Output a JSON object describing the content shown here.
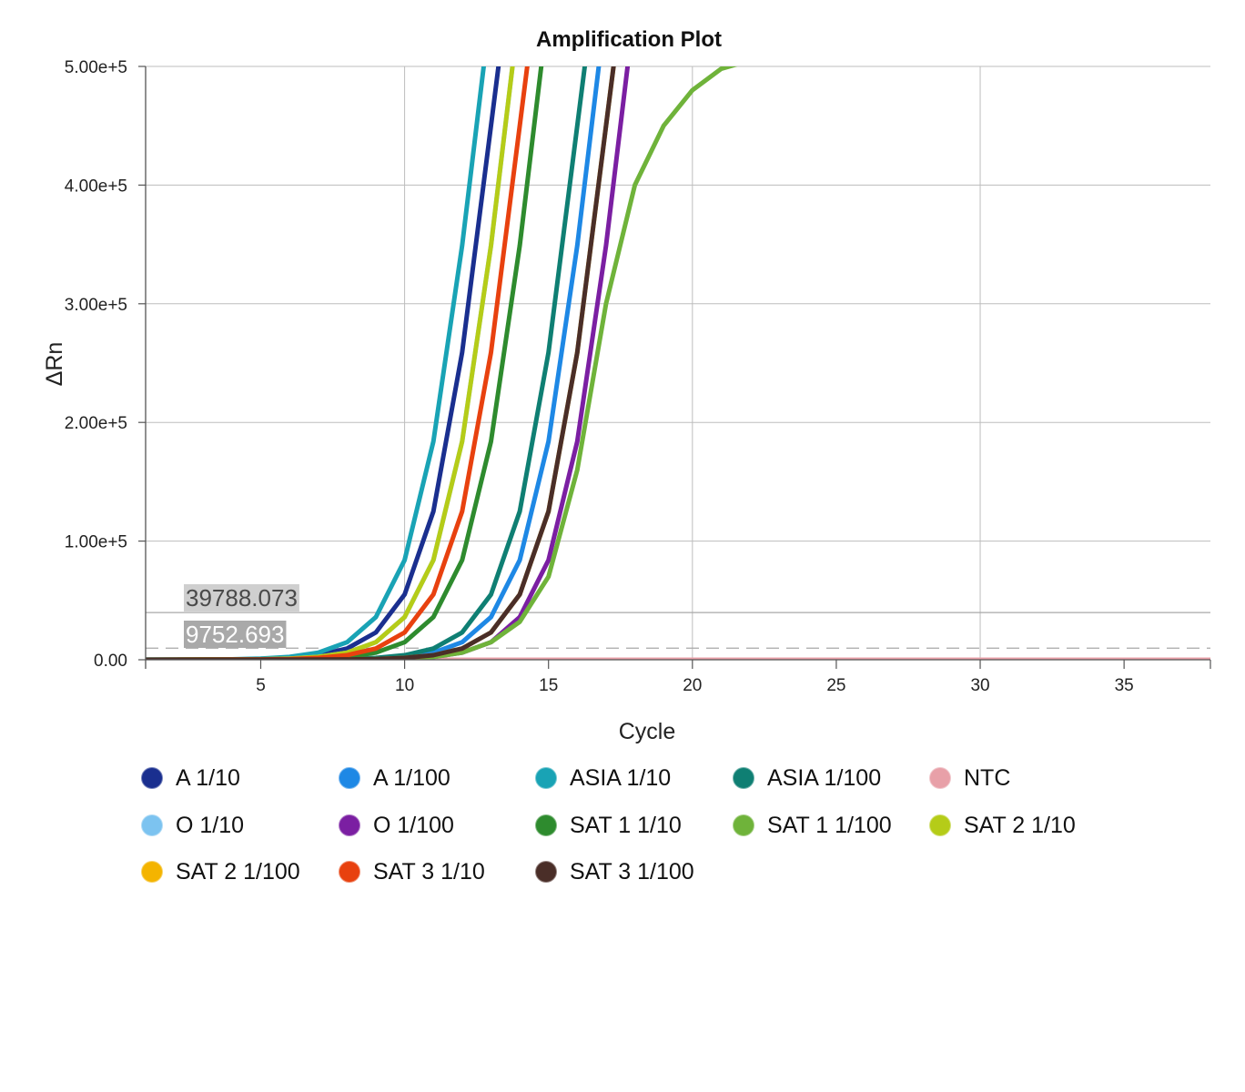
{
  "chart_data": {
    "type": "line",
    "title": "Amplification Plot",
    "xlabel": "Cycle",
    "ylabel": "ΔRn",
    "xlim": [
      1,
      38
    ],
    "ylim": [
      0,
      500000
    ],
    "x_ticks": [
      5,
      10,
      15,
      20,
      25,
      30,
      35
    ],
    "y_ticks": [
      0,
      100000,
      200000,
      300000,
      400000,
      500000
    ],
    "y_tick_labels": [
      "0.00",
      "1.00e+5",
      "2.00e+5",
      "3.00e+5",
      "4.00e+5",
      "5.00e+5"
    ],
    "grid": true,
    "legend_position": "bottom",
    "x_start": 1,
    "thresholds": [
      {
        "label": "39788.073",
        "value": 39788.073,
        "style": "solid"
      },
      {
        "label": "9752.693",
        "value": 9752.693,
        "style": "dashed"
      }
    ],
    "series": [
      {
        "name": "A 1/10",
        "color": "#1a2f8f",
        "values": [
          50,
          100,
          150,
          300,
          600,
          1500,
          3800,
          9400,
          23000,
          55000,
          125000,
          259000,
          450000,
          642000
        ]
      },
      {
        "name": "A 1/100",
        "color": "#1e88e5",
        "values": [
          20,
          30,
          40,
          60,
          80,
          120,
          200,
          400,
          1000,
          2400,
          6000,
          14800,
          36000,
          84000,
          184000,
          349000,
          551000
        ]
      },
      {
        "name": "ASIA 1/10",
        "color": "#19a3b5",
        "values": [
          100,
          150,
          250,
          400,
          1000,
          2400,
          6000,
          14800,
          36000,
          84000,
          184000,
          349000,
          551000
        ]
      },
      {
        "name": "ASIA 1/100",
        "color": "#0f7f73",
        "values": [
          20,
          30,
          50,
          80,
          100,
          200,
          300,
          600,
          1500,
          3800,
          9400,
          23000,
          55000,
          125000,
          259000,
          450000,
          642000
        ]
      },
      {
        "name": "NTC",
        "color": "#e8a0a8",
        "values": [
          0,
          0,
          0,
          0,
          0,
          0,
          0,
          0,
          0,
          0,
          0,
          0,
          0,
          0,
          0,
          0,
          0,
          0,
          0,
          0,
          0,
          0,
          0,
          0,
          0,
          0,
          0,
          0,
          0,
          0,
          0,
          0,
          0,
          0,
          0,
          0,
          0,
          0
        ]
      },
      {
        "name": "O 1/10",
        "color": "#7cc3f0",
        "values": [
          50,
          80,
          120,
          200,
          400,
          1000,
          2400,
          6000,
          14800,
          36000,
          84000,
          184000,
          349000,
          551000
        ]
      },
      {
        "name": "O 1/100",
        "color": "#7b1fa2",
        "values": [
          20,
          30,
          40,
          50,
          60,
          80,
          120,
          200,
          400,
          1000,
          2400,
          6000,
          14800,
          36000,
          84000,
          184000,
          349000,
          551000
        ]
      },
      {
        "name": "SAT 1 1/10",
        "color": "#2e8b2e",
        "values": [
          30,
          50,
          80,
          100,
          200,
          400,
          1000,
          2400,
          6000,
          14800,
          36000,
          84000,
          184000,
          349000,
          551000
        ]
      },
      {
        "name": "SAT 1 1/100",
        "color": "#6fb33a",
        "values": [
          20,
          30,
          40,
          50,
          60,
          80,
          120,
          200,
          400,
          1000,
          2400,
          6000,
          14800,
          32000,
          70000,
          160000,
          300000,
          400000,
          450000,
          480000,
          498000,
          505000
        ]
      },
      {
        "name": "SAT 2 1/10",
        "color": "#b5cc18",
        "values": [
          50,
          80,
          120,
          200,
          400,
          1000,
          2400,
          6000,
          14800,
          36000,
          84000,
          184000,
          349000,
          551000
        ]
      },
      {
        "name": "SAT 2 1/100",
        "color": "#f4b400",
        "values": [
          20,
          30,
          40,
          50,
          60,
          100,
          150,
          300,
          600,
          1500,
          3800,
          9400,
          23000,
          55000,
          125000,
          259000,
          450000,
          642000
        ]
      },
      {
        "name": "SAT 3 1/10",
        "color": "#e8410f",
        "values": [
          30,
          60,
          100,
          150,
          300,
          600,
          1500,
          3800,
          9400,
          23000,
          55000,
          125000,
          259000,
          450000,
          642000
        ]
      },
      {
        "name": "SAT 3 1/100",
        "color": "#4a2e28",
        "values": [
          20,
          30,
          40,
          50,
          60,
          100,
          150,
          300,
          600,
          1500,
          3800,
          9400,
          23000,
          55000,
          125000,
          259000,
          450000,
          642000
        ]
      }
    ]
  }
}
